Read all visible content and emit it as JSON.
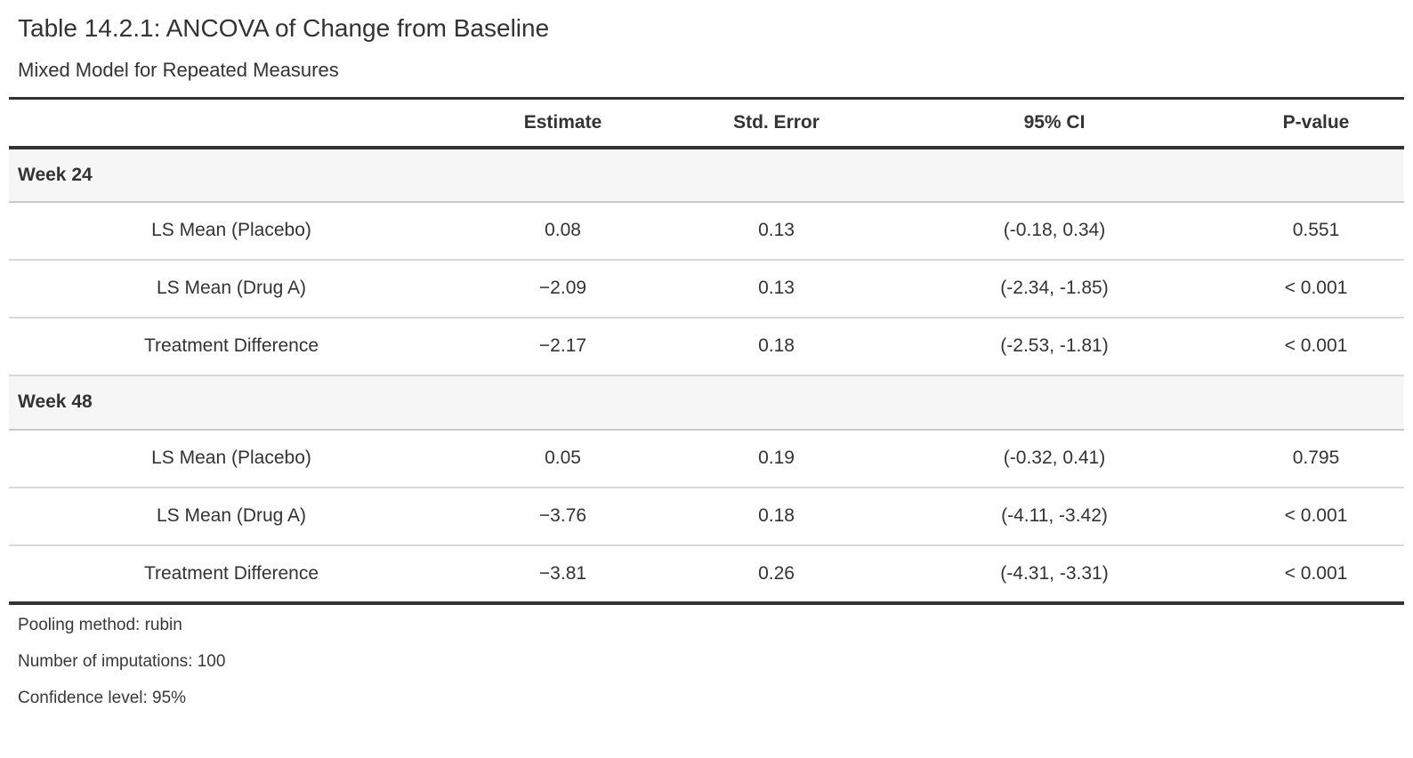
{
  "table": {
    "title": "Table 14.2.1: ANCOVA of Change from Baseline",
    "subtitle": "Mixed Model for Repeated Measures",
    "columns": {
      "stub": "",
      "estimate": "Estimate",
      "std_error": "Std. Error",
      "ci": "95% CI",
      "p_value": "P-value"
    },
    "groups": [
      {
        "label": "Week 24",
        "rows": [
          {
            "label": "LS Mean (Placebo)",
            "estimate": "0.08",
            "std_error": "0.13",
            "ci": "(-0.18, 0.34)",
            "p_value": "0.551"
          },
          {
            "label": "LS Mean (Drug A)",
            "estimate": "−2.09",
            "std_error": "0.13",
            "ci": "(-2.34, -1.85)",
            "p_value": "< 0.001"
          },
          {
            "label": "Treatment Difference",
            "estimate": "−2.17",
            "std_error": "0.18",
            "ci": "(-2.53, -1.81)",
            "p_value": "< 0.001"
          }
        ]
      },
      {
        "label": "Week 48",
        "rows": [
          {
            "label": "LS Mean (Placebo)",
            "estimate": "0.05",
            "std_error": "0.19",
            "ci": "(-0.32, 0.41)",
            "p_value": "0.795"
          },
          {
            "label": "LS Mean (Drug A)",
            "estimate": "−3.76",
            "std_error": "0.18",
            "ci": "(-4.11, -3.42)",
            "p_value": "< 0.001"
          },
          {
            "label": "Treatment Difference",
            "estimate": "−3.81",
            "std_error": "0.26",
            "ci": "(-4.31, -3.31)",
            "p_value": "< 0.001"
          }
        ]
      }
    ],
    "footnotes": [
      "Pooling method: rubin",
      "Number of imputations: 100",
      "Confidence level: 95%"
    ]
  },
  "colors": {
    "border_dark": "#333333",
    "border_light": "#d9d9d9",
    "border_group": "#c9c9c9",
    "group_bg": "#f6f6f6",
    "text": "#333333"
  }
}
